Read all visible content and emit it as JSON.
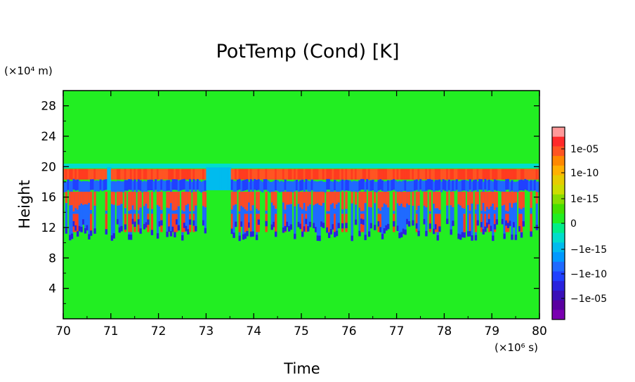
{
  "chart_data": {
    "type": "heatmap",
    "title": "PotTemp (Cond) [K]",
    "xlabel": "Time",
    "ylabel": "Height",
    "x_unit_label": "(×10⁶ s)",
    "y_unit_label": "(×10⁴ m)",
    "xlim": [
      70,
      80
    ],
    "ylim": [
      0,
      30
    ],
    "x_ticks": [
      "70",
      "71",
      "72",
      "73",
      "74",
      "75",
      "76",
      "77",
      "78",
      "79",
      "80"
    ],
    "y_ticks": [
      "4",
      "8",
      "12",
      "16",
      "20",
      "24",
      "28"
    ],
    "colorbar": {
      "labels": [
        "1e-05",
        "1e-10",
        "1e-15",
        "0",
        "−1e-15",
        "−1e-10",
        "−1e-05"
      ],
      "colors": [
        "#ff9999",
        "#ff2a2a",
        "#ff5522",
        "#ff8800",
        "#ffb000",
        "#e6cc00",
        "#ccdd00",
        "#88dd00",
        "#44e000",
        "#22ee22",
        "#00ee88",
        "#00ddcc",
        "#00bbee",
        "#0099ff",
        "#1f6aff",
        "#2040ff",
        "#2a22dd",
        "#3a10b8",
        "#5a00a0",
        "#7a00b0"
      ]
    },
    "background_value": "0",
    "features": {
      "positive_band_height": [
        18.3,
        19.7
      ],
      "negative_band_height": [
        16.8,
        18.2
      ],
      "lower_structures_height": [
        10.0,
        16.8
      ],
      "time_gaps": [
        [
          70.9,
          71.0
        ],
        [
          73.0,
          73.5
        ]
      ]
    }
  }
}
